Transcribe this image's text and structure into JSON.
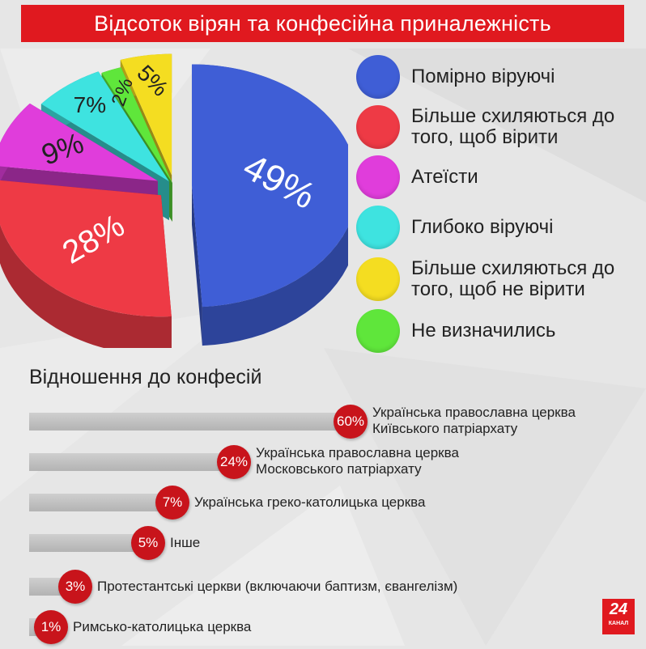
{
  "title": "Відсоток вірян та конфесійна приналежність",
  "chart_data": [
    {
      "type": "pie",
      "labels": [
        "Помірно віруючі",
        "Більше схиляються до того, щоб вірити",
        "Атеїсти",
        "Глибоко віруючі",
        "Не визначились",
        "Більше схиляються до того, щоб не вірити"
      ],
      "values": [
        49,
        28,
        9,
        7,
        2,
        5
      ],
      "value_labels": [
        "49%",
        "28%",
        "9%",
        "7%",
        "2%",
        "5%"
      ],
      "colors": [
        "#3f5ed6",
        "#ee3a45",
        "#e03ddb",
        "#3ee3e0",
        "#5fe63b",
        "#f4dd21"
      ],
      "legend_position": "right"
    },
    {
      "type": "bar",
      "title": "Відношення до конфесій",
      "categories": [
        "Українська православна церква Київського патріархату",
        "Українська православна церква Московського патріархату",
        "Українська греко-католицька церква",
        "Інше",
        "Протестантські церкви (включаючи баптизм, євангелізм)",
        "Римсько-католицька церква"
      ],
      "values": [
        60,
        24,
        7,
        5,
        3,
        1
      ],
      "value_labels": [
        "60%",
        "24%",
        "7%",
        "5%",
        "3%",
        "1%"
      ],
      "colors": [
        "#c8141b"
      ]
    }
  ],
  "legend": [
    {
      "label": "Помірно віруючі",
      "color": "#3f5ed6"
    },
    {
      "label": "Більше схиляються до того, щоб вірити",
      "color": "#ee3a45"
    },
    {
      "label": "Атеїсти",
      "color": "#e03ddb"
    },
    {
      "label": "Глибоко віруючі",
      "color": "#3ee3e0"
    },
    {
      "label": "Більше схиляються до того, щоб не вірити",
      "color": "#f4dd21"
    },
    {
      "label": "Не визначились",
      "color": "#5fe63b"
    }
  ],
  "logo": {
    "number": "24",
    "caption": "КАНАЛ"
  }
}
